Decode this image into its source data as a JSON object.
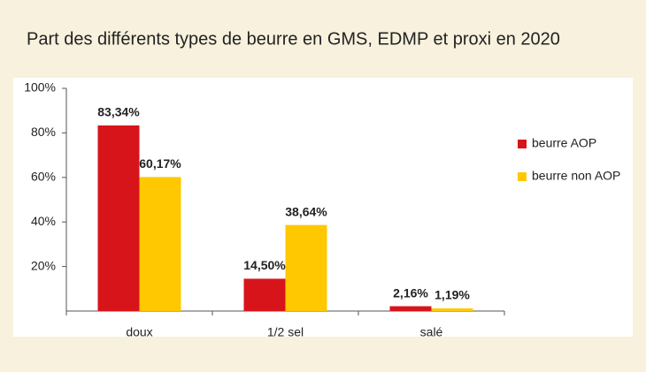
{
  "chart_data": {
    "type": "bar",
    "title": "Part des différents types de beurre en GMS, EDMP et proxi en 2020",
    "categories": [
      "doux",
      "1/2 sel",
      "salé"
    ],
    "series": [
      {
        "name": "beurre AOP",
        "color": "#d7141a",
        "values": [
          83.34,
          14.5,
          2.16
        ],
        "value_labels": [
          "83,34%",
          "14,50%",
          "2,16%"
        ]
      },
      {
        "name": "beurre non AOP",
        "color": "#ffc800",
        "values": [
          60.17,
          38.64,
          1.19
        ],
        "value_labels": [
          "60,17%",
          "38,64%",
          "1,19%"
        ]
      }
    ],
    "ylim": [
      0,
      100
    ],
    "yticks": [
      {
        "value": 20,
        "label": "20%"
      },
      {
        "value": 40,
        "label": "40%"
      },
      {
        "value": 60,
        "label": "60%"
      },
      {
        "value": 80,
        "label": "80%"
      },
      {
        "value": 100,
        "label": "100%"
      }
    ],
    "legend": "right"
  }
}
